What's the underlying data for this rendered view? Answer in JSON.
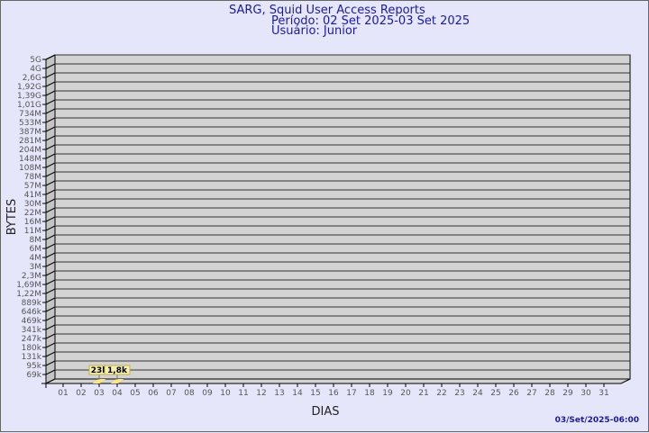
{
  "chart_data": {
    "type": "bar",
    "title": "SARG, Squid User Access Reports",
    "subtitle_period": "Período: 02 Set 2025-03 Set 2025",
    "subtitle_user": "Usuário: Junior",
    "xlabel": "DIAS",
    "ylabel": "BYTES",
    "y_scale": "log",
    "y_tick_labels": [
      "5G",
      "4G",
      "2,6G",
      "1,92G",
      "1,39G",
      "1,01G",
      "734M",
      "533M",
      "387M",
      "281M",
      "204M",
      "148M",
      "108M",
      "78M",
      "57M",
      "41M",
      "30M",
      "22M",
      "16M",
      "11M",
      "8M",
      "6M",
      "4M",
      "3M",
      "2,3M",
      "1,69M",
      "1,22M",
      "889k",
      "646k",
      "469k",
      "341k",
      "247k",
      "180k",
      "131k",
      "95k",
      "69k"
    ],
    "categories": [
      "01",
      "02",
      "03",
      "04",
      "05",
      "06",
      "07",
      "08",
      "09",
      "10",
      "11",
      "12",
      "13",
      "14",
      "15",
      "16",
      "17",
      "18",
      "19",
      "20",
      "21",
      "22",
      "23",
      "24",
      "25",
      "26",
      "27",
      "28",
      "29",
      "30",
      "31"
    ],
    "bars": [
      {
        "day": "02",
        "value": 23000,
        "label": "23k"
      },
      {
        "day": "03",
        "value": 1800,
        "label": "1,8k"
      }
    ],
    "grid": true,
    "style": "3d",
    "colors": {
      "background": "#e6e6fa",
      "wall": "#d3d3d3",
      "side_wall": "#c4c4c4",
      "bar": "#ffe680",
      "label_bg": "#f5f0b0",
      "title": "#1a1aa0"
    }
  },
  "footer": {
    "timestamp": "03/Set/2025-06:00"
  }
}
